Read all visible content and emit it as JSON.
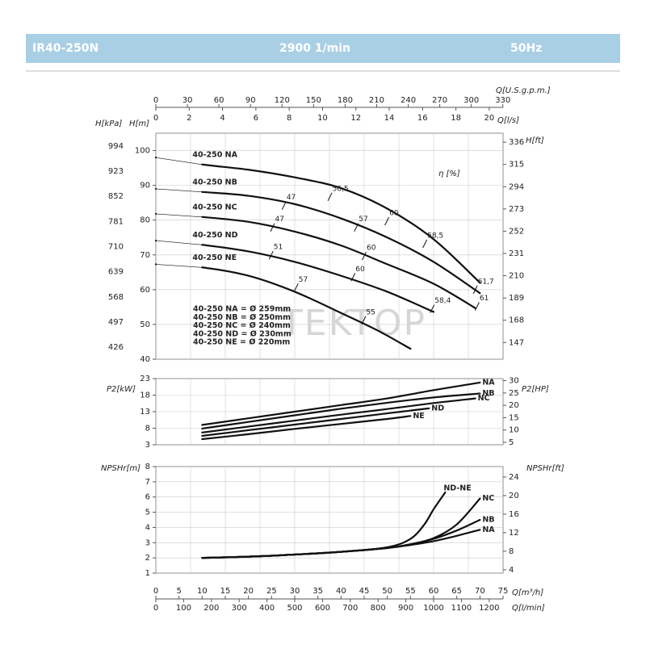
{
  "header": {
    "model": "IR40-250N",
    "speed": "2900 1/min",
    "frequency": "50Hz"
  },
  "chart_data": [
    {
      "type": "line",
      "y_label": "H[m]",
      "y2_label": "H[kPa]",
      "y3_label": "H[ft]",
      "xlim": [
        0,
        75
      ],
      "ylim": [
        40,
        105
      ],
      "yticks": [
        40,
        50,
        60,
        70,
        80,
        90,
        100
      ],
      "y2lim": [
        392.4,
        1030
      ],
      "y2ticks": [
        426,
        497,
        568,
        639,
        710,
        781,
        852,
        923,
        994
      ],
      "y3lim": [
        131.2,
        344.5
      ],
      "y3ticks": [
        147,
        168,
        189,
        210,
        231,
        252,
        273,
        294,
        315,
        336
      ],
      "x_axes": [
        {
          "label": "Q[U.S.g.p.m.]",
          "lim": [
            0,
            330.2
          ],
          "ticks": [
            0,
            30,
            60,
            90,
            120,
            150,
            180,
            210,
            240,
            270,
            300,
            330
          ]
        },
        {
          "label": "Q[l/s]",
          "lim": [
            0,
            20.83
          ],
          "ticks": [
            0,
            2,
            4,
            6,
            8,
            10,
            12,
            14,
            16,
            18,
            20
          ]
        }
      ],
      "efficiency_label": "η [%]",
      "series": [
        {
          "name": "40-250 NA",
          "color": "#111111",
          "x": [
            0,
            10,
            20,
            30,
            40,
            50,
            60,
            70
          ],
          "values": [
            98,
            96,
            94.5,
            92.3,
            89.2,
            83.3,
            74.5,
            62
          ]
        },
        {
          "name": "40-250 NB",
          "color": "#111111",
          "x": [
            0,
            10,
            20,
            30,
            40,
            50,
            60,
            70
          ],
          "values": [
            89,
            88.1,
            87,
            84.6,
            80.5,
            75,
            68,
            59
          ]
        },
        {
          "name": "40-250 NC",
          "color": "#111111",
          "x": [
            0,
            10,
            20,
            30,
            40,
            50,
            60,
            69
          ],
          "values": [
            81.8,
            80.9,
            79.5,
            76.7,
            72.7,
            67.3,
            61.7,
            54.7
          ]
        },
        {
          "name": "40-250 ND",
          "color": "#111111",
          "x": [
            0,
            10,
            20,
            30,
            40,
            50,
            60
          ],
          "values": [
            74.1,
            72.9,
            71,
            68,
            64,
            59.4,
            53.6
          ]
        },
        {
          "name": "40-250 NE",
          "color": "#111111",
          "x": [
            0,
            10,
            20,
            30,
            40,
            48,
            55
          ],
          "values": [
            67.3,
            66.4,
            64,
            59.4,
            53.3,
            48.2,
            43
          ]
        }
      ],
      "efficiency_marks": [
        {
          "label": "47",
          "x": 27.7,
          "y": 84.2
        },
        {
          "label": "47",
          "x": 25.2,
          "y": 77.9
        },
        {
          "label": "51",
          "x": 24.9,
          "y": 69.9
        },
        {
          "label": "57",
          "x": 30.3,
          "y": 60.6
        },
        {
          "label": "56,5",
          "x": 37.6,
          "y": 86.7
        },
        {
          "label": "57",
          "x": 43.3,
          "y": 77.9
        },
        {
          "label": "60",
          "x": 45,
          "y": 69.7
        },
        {
          "label": "60",
          "x": 42.6,
          "y": 63.6
        },
        {
          "label": "55",
          "x": 44.9,
          "y": 51.2
        },
        {
          "label": "60",
          "x": 49.9,
          "y": 79.7
        },
        {
          "label": "58,5",
          "x": 58.1,
          "y": 73.2
        },
        {
          "label": "61,7",
          "x": 69,
          "y": 60
        },
        {
          "label": "61",
          "x": 69.4,
          "y": 55.2
        },
        {
          "label": "58,4",
          "x": 59.7,
          "y": 54.5
        }
      ],
      "diameters": [
        "40-250 NA = Ø 259mm",
        "40-250 NB = Ø 250mm",
        "40-250 NC = Ø 240mm",
        "40-250 ND = Ø 230mm",
        "40-250 NE = Ø 220mm"
      ],
      "watermark": "TEKTOP",
      "grid": true
    },
    {
      "type": "line",
      "y_label": "P2[kW]",
      "y2_label": "P2[HP]",
      "xlim": [
        0,
        75
      ],
      "ylim": [
        3,
        23
      ],
      "yticks": [
        3,
        8,
        13,
        18,
        23
      ],
      "y2lim": [
        4.02,
        30.84
      ],
      "y2ticks": [
        5,
        10,
        15,
        20,
        25,
        30
      ],
      "series": [
        {
          "name": "NA",
          "color": "#111111",
          "x": [
            10,
            20,
            30,
            40,
            50,
            60,
            70
          ],
          "values": [
            9,
            11,
            13,
            15,
            17,
            19.5,
            21.8
          ]
        },
        {
          "name": "NB",
          "color": "#111111",
          "x": [
            10,
            20,
            30,
            40,
            50,
            60,
            70
          ],
          "values": [
            7.9,
            9.9,
            11.9,
            13.9,
            15.7,
            17.3,
            18.5
          ]
        },
        {
          "name": "NC",
          "color": "#111111",
          "x": [
            10,
            20,
            30,
            40,
            50,
            60,
            69
          ],
          "values": [
            6.7,
            8.5,
            10.3,
            12.1,
            13.8,
            15.6,
            17
          ]
        },
        {
          "name": "ND",
          "color": "#111111",
          "x": [
            10,
            20,
            30,
            40,
            50,
            59
          ],
          "values": [
            5.7,
            7.4,
            9.1,
            10.8,
            12.5,
            14
          ]
        },
        {
          "name": "NE",
          "color": "#111111",
          "x": [
            10,
            20,
            30,
            40,
            50,
            55
          ],
          "values": [
            4.7,
            6.2,
            7.8,
            9.3,
            10.8,
            11.7
          ]
        }
      ],
      "grid": true
    },
    {
      "type": "line",
      "y_label": "NPSHr[m]",
      "y2_label": "NPSHr[ft]",
      "xlim": [
        0,
        75
      ],
      "ylim": [
        1,
        8
      ],
      "yticks": [
        1,
        2,
        3,
        4,
        5,
        6,
        7,
        8
      ],
      "y2lim": [
        3.28,
        26.25
      ],
      "y2ticks": [
        4,
        8,
        12,
        16,
        20,
        24
      ],
      "x_label": "Q[m³/h]",
      "xticks": [
        0,
        5,
        10,
        15,
        20,
        25,
        30,
        35,
        40,
        45,
        50,
        55,
        60,
        65,
        70,
        75
      ],
      "x_axes": [
        {
          "label": "Q[l/min]",
          "lim": [
            0,
            1250
          ],
          "ticks": [
            0,
            100,
            200,
            300,
            400,
            500,
            600,
            700,
            800,
            900,
            1000,
            1100,
            1200
          ]
        }
      ],
      "series": [
        {
          "name": "ND-NE",
          "color": "#111111",
          "x": [
            10,
            20,
            30,
            40,
            50,
            55,
            58,
            60,
            62.5
          ],
          "values": [
            2,
            2.08,
            2.22,
            2.4,
            2.7,
            3.25,
            4.2,
            5.2,
            6.3
          ]
        },
        {
          "name": "NC",
          "color": "#111111",
          "x": [
            10,
            20,
            30,
            40,
            50,
            55,
            60,
            65,
            70
          ],
          "values": [
            2,
            2.08,
            2.22,
            2.4,
            2.65,
            2.9,
            3.3,
            4.2,
            5.9
          ]
        },
        {
          "name": "NB",
          "color": "#111111",
          "x": [
            10,
            20,
            30,
            40,
            50,
            55,
            60,
            65,
            70
          ],
          "values": [
            2,
            2.08,
            2.22,
            2.4,
            2.65,
            2.88,
            3.25,
            3.8,
            4.5
          ]
        },
        {
          "name": "NA",
          "color": "#111111",
          "x": [
            10,
            20,
            30,
            40,
            50,
            55,
            60,
            65,
            70
          ],
          "values": [
            2,
            2.08,
            2.22,
            2.4,
            2.65,
            2.85,
            3.1,
            3.45,
            3.85
          ]
        }
      ],
      "grid": true
    }
  ]
}
